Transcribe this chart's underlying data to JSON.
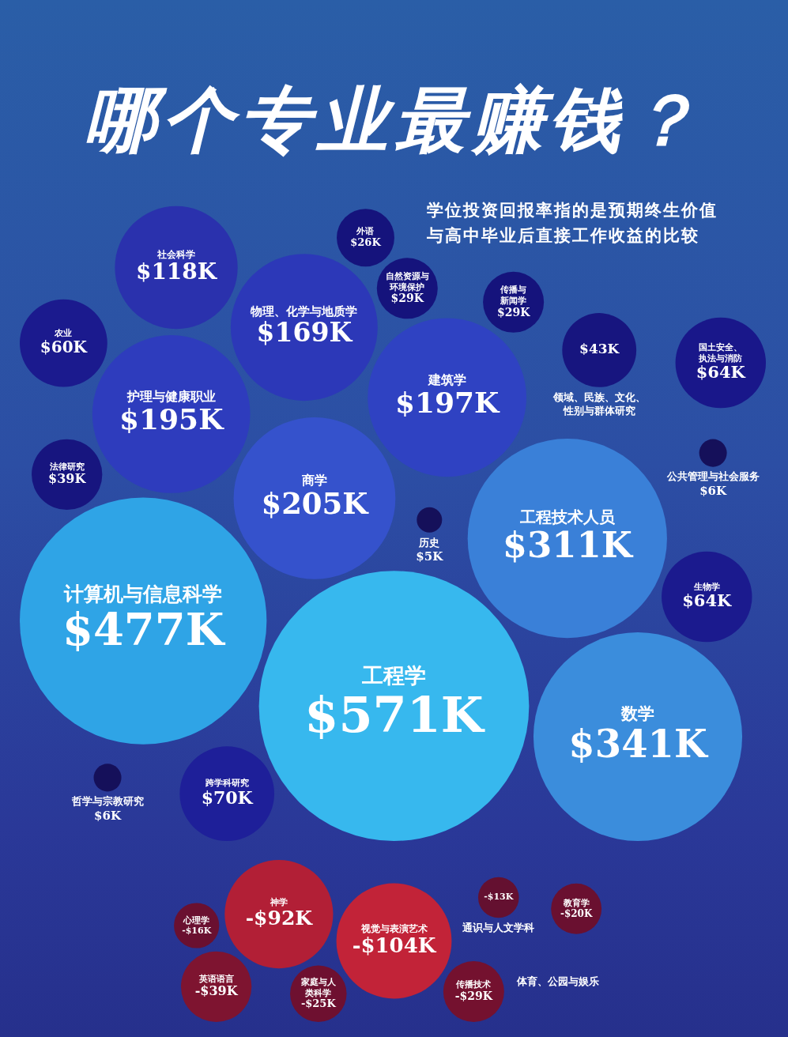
{
  "chart_data": {
    "type": "other",
    "title": "哪个专业最赚钱？",
    "subtitle": "学位投资回报率指的是预期终生价值与高中毕业后直接工作收益的比较",
    "categories": [
      "传播与新闻学",
      "自然资源与环境保护",
      "法律研究",
      "领域、民族、文化、性别与群体研究",
      "外语",
      "护理与健康职业",
      "建筑学",
      "农业",
      "生物学",
      "国土安全、执法与消防",
      "历史",
      "跨学科研究",
      "商学",
      "数学",
      "工程技术人员",
      "哲学与宗教研究",
      "物理、化学与地质学",
      "计算机与信息科学",
      "工程学",
      "公共管理与社会服务",
      "社会科学",
      "家庭与人类科学",
      "传播技术",
      "英语语言",
      "神学",
      "视觉与表演艺术",
      "体育、公园与娱乐",
      "通识与人文学科",
      "心理学",
      "教育学"
    ],
    "values": [
      29,
      29,
      39,
      43,
      26,
      195,
      197,
      60,
      64,
      64,
      5,
      70,
      205,
      341,
      311,
      6,
      169,
      477,
      571,
      6,
      118,
      -25,
      -29,
      -39,
      -92,
      -104,
      null,
      -13,
      -16,
      -20
    ],
    "value_labels": [
      "$29K",
      "$29K",
      "$39K",
      "$43K",
      "$26K",
      "$195K",
      "$197K",
      "$60K",
      "$64K",
      "$64K",
      "$5K",
      "$70K",
      "$205K",
      "$341K",
      "$311K",
      "$6K",
      "$169K",
      "$477K",
      "$571K",
      "$6K",
      "$118K",
      "-$25K",
      "-$29K",
      "-$39K",
      "-$92K",
      "-$104K",
      null,
      "-$13K",
      "-$16K",
      "-$20K"
    ],
    "colors": [
      "#15137c",
      "#15137c",
      "#17157f",
      "#17157f",
      "#15137c",
      "#2e3cbd",
      "#2f42c2",
      "#1b1a8e",
      "#1b1a8e",
      "#19178a",
      "#15105a",
      "#1e1f99",
      "#3552cc",
      "#3b8ddc",
      "#3a80d8",
      "#15105a",
      "#2c38b8",
      "#2fa4e6",
      "#37b8ee",
      "#15105a",
      "#2a31ad",
      "#6e1030",
      "#74112f",
      "#7e1430",
      "#b21f36",
      "#c22338",
      null,
      "#641030",
      "#6a1030",
      "#6a1030"
    ]
  }
}
